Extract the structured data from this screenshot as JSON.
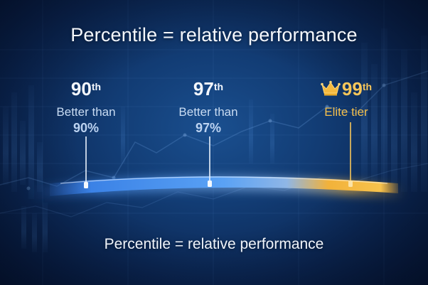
{
  "title": "Percentile = relative performance",
  "subtitle": "Percentile = relative performance",
  "markers": [
    {
      "rank": "90",
      "suffix": "th",
      "desc": "Better than",
      "value": "90%"
    },
    {
      "rank": "97",
      "suffix": "th",
      "desc": "Better than",
      "value": "97%"
    },
    {
      "rank": "99",
      "suffix": "th",
      "desc": "Elite tier",
      "icon": "crown-icon"
    }
  ],
  "colors": {
    "background": "#0b2652",
    "bar_blue": "#3f8ef0",
    "bar_gold": "#f5b73a",
    "elite": "#f4bf4c"
  }
}
